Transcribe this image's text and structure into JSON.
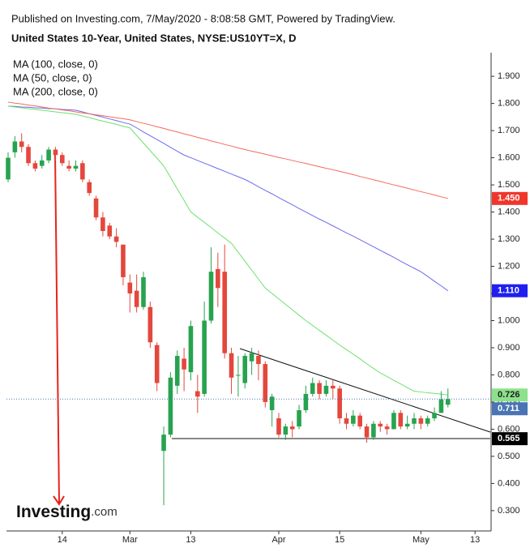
{
  "header": {
    "published": "Published on Investing.com, 7/May/2020 - 8:08:58 GMT, Powered by TradingView.",
    "title": "United States 10-Year, United States, NYSE:US10YT=X, D"
  },
  "logo": {
    "brand": "Investing",
    "suffix": ".com"
  },
  "chart_data": {
    "type": "candlestick",
    "categories": [
      null,
      null,
      null,
      null,
      null,
      null,
      null,
      null,
      "14",
      null,
      null,
      null,
      null,
      null,
      null,
      null,
      null,
      null,
      "Mar",
      null,
      null,
      null,
      null,
      null,
      null,
      null,
      null,
      "13",
      null,
      null,
      null,
      null,
      null,
      null,
      null,
      null,
      null,
      null,
      null,
      null,
      "Apr",
      null,
      null,
      null,
      null,
      null,
      null,
      null,
      null,
      "15",
      null,
      null,
      null,
      null,
      null,
      null,
      null,
      null,
      null,
      null,
      null,
      "May",
      null,
      null,
      null,
      null,
      null,
      null,
      null,
      "13"
    ],
    "candles": {
      "open": [
        1.52,
        1.62,
        1.66,
        1.64,
        1.58,
        1.57,
        1.59,
        1.63,
        1.61,
        1.57,
        1.56,
        1.58,
        1.51,
        1.45,
        1.38,
        1.35,
        1.31,
        1.28,
        1.14,
        1.11,
        1.05,
        1.05,
        0.91,
        0.52,
        0.58,
        0.76,
        0.86,
        0.81,
        0.74,
        0.73,
        1.0,
        1.19,
        1.18,
        0.88,
        0.8,
        0.77,
        0.85,
        0.87,
        0.84,
        0.67,
        0.64,
        0.58,
        0.61,
        0.61,
        0.67,
        0.73,
        0.77,
        0.73,
        0.76,
        0.75,
        0.64,
        0.62,
        0.65,
        0.61,
        0.57,
        0.62,
        0.61,
        0.6,
        0.66,
        0.61,
        0.62,
        0.64,
        0.62,
        0.64,
        0.66,
        0.69,
        null,
        null,
        null,
        null
      ],
      "high": [
        1.62,
        1.68,
        1.69,
        1.65,
        1.59,
        1.61,
        1.64,
        1.64,
        1.62,
        1.59,
        1.59,
        1.59,
        1.52,
        1.46,
        1.4,
        1.36,
        1.34,
        1.28,
        1.17,
        1.17,
        1.18,
        1.07,
        0.92,
        0.61,
        0.81,
        0.89,
        0.9,
        1.0,
        0.8,
        1.07,
        1.27,
        1.25,
        1.28,
        0.9,
        0.87,
        0.88,
        0.9,
        0.89,
        0.85,
        0.73,
        0.66,
        0.62,
        0.63,
        0.69,
        0.76,
        0.79,
        0.78,
        0.78,
        0.78,
        0.76,
        0.66,
        0.67,
        0.66,
        0.62,
        0.63,
        0.63,
        0.62,
        0.67,
        0.67,
        0.65,
        0.66,
        0.65,
        0.65,
        0.68,
        0.74,
        0.75,
        null,
        null,
        null,
        null
      ],
      "low": [
        1.51,
        1.6,
        1.62,
        1.57,
        1.55,
        1.56,
        1.58,
        1.59,
        1.57,
        1.55,
        1.55,
        1.51,
        1.46,
        1.37,
        1.31,
        1.3,
        1.27,
        1.13,
        1.03,
        1.03,
        1.04,
        0.9,
        0.74,
        0.32,
        0.57,
        0.73,
        0.74,
        0.78,
        0.66,
        0.72,
        0.99,
        1.05,
        0.86,
        0.73,
        0.72,
        0.75,
        0.8,
        0.78,
        0.68,
        0.61,
        0.57,
        0.56,
        0.57,
        0.6,
        0.66,
        0.72,
        0.71,
        0.72,
        0.71,
        0.62,
        0.6,
        0.61,
        0.6,
        0.55,
        0.56,
        0.59,
        0.58,
        0.6,
        0.6,
        0.6,
        0.6,
        0.6,
        0.61,
        0.63,
        0.66,
        0.68,
        null,
        null,
        null,
        null
      ],
      "close": [
        1.6,
        1.66,
        1.64,
        1.58,
        1.56,
        1.59,
        1.63,
        1.61,
        1.58,
        1.56,
        1.57,
        1.52,
        1.47,
        1.38,
        1.33,
        1.31,
        1.29,
        1.16,
        1.1,
        1.05,
        1.16,
        0.92,
        0.77,
        0.58,
        0.79,
        0.87,
        0.82,
        0.98,
        0.72,
        1.0,
        1.18,
        1.12,
        0.88,
        0.79,
        0.8,
        0.87,
        0.88,
        0.84,
        0.7,
        0.72,
        0.58,
        0.61,
        0.6,
        0.67,
        0.73,
        0.77,
        0.73,
        0.76,
        0.75,
        0.64,
        0.62,
        0.65,
        0.61,
        0.57,
        0.62,
        0.61,
        0.6,
        0.66,
        0.61,
        0.62,
        0.64,
        0.62,
        0.64,
        0.66,
        0.71,
        0.711,
        null,
        null,
        null,
        null
      ]
    },
    "up_color": "#27a34f",
    "down_color": "#e4473c",
    "series": [
      {
        "name": "MA (100, close, 0)",
        "color": "#6b6bf0",
        "values": [
          1.79,
          1.789,
          1.787,
          1.786,
          1.784,
          1.783,
          1.781,
          1.78,
          1.778,
          1.777,
          1.775,
          1.769,
          1.762,
          1.756,
          1.75,
          1.743,
          1.737,
          1.73,
          1.724,
          1.71,
          1.695,
          1.681,
          1.667,
          1.653,
          1.638,
          1.624,
          1.61,
          1.6,
          1.59,
          1.58,
          1.57,
          1.56,
          1.55,
          1.54,
          1.53,
          1.52,
          1.507,
          1.493,
          1.48,
          1.467,
          1.453,
          1.44,
          1.427,
          1.413,
          1.4,
          1.387,
          1.374,
          1.362,
          1.349,
          1.336,
          1.323,
          1.311,
          1.298,
          1.285,
          1.272,
          1.259,
          1.246,
          1.233,
          1.219,
          1.206,
          1.193,
          1.18,
          1.163,
          1.145,
          1.128,
          1.11,
          null,
          null,
          null,
          null
        ]
      },
      {
        "name": "MA (50, close, 0)",
        "color": "#6fe06f",
        "values": [
          1.79,
          1.787,
          1.784,
          1.781,
          1.778,
          1.775,
          1.772,
          1.769,
          1.766,
          1.763,
          1.76,
          1.754,
          1.748,
          1.741,
          1.735,
          1.729,
          1.723,
          1.716,
          1.71,
          1.682,
          1.654,
          1.626,
          1.598,
          1.57,
          1.528,
          1.485,
          1.443,
          1.4,
          1.381,
          1.362,
          1.343,
          1.323,
          1.304,
          1.285,
          1.252,
          1.219,
          1.186,
          1.153,
          1.12,
          1.1,
          1.08,
          1.06,
          1.04,
          1.02,
          1.0,
          0.982,
          0.964,
          0.946,
          0.928,
          0.91,
          0.893,
          0.876,
          0.859,
          0.841,
          0.824,
          0.807,
          0.794,
          0.78,
          0.767,
          0.753,
          0.74,
          0.737,
          0.734,
          0.732,
          0.729,
          0.726,
          null,
          null,
          null,
          null
        ]
      },
      {
        "name": "MA (200, close, 0)",
        "color": "#f26b5b",
        "values": [
          1.805,
          1.801,
          1.798,
          1.794,
          1.791,
          1.787,
          1.783,
          1.78,
          1.776,
          1.773,
          1.769,
          1.765,
          1.762,
          1.758,
          1.755,
          1.751,
          1.747,
          1.744,
          1.74,
          1.733,
          1.727,
          1.721,
          1.714,
          1.708,
          1.701,
          1.695,
          1.688,
          1.682,
          1.675,
          1.669,
          1.662,
          1.656,
          1.649,
          1.643,
          1.636,
          1.63,
          1.624,
          1.619,
          1.613,
          1.607,
          1.601,
          1.596,
          1.59,
          1.584,
          1.579,
          1.573,
          1.567,
          1.561,
          1.556,
          1.55,
          1.544,
          1.538,
          1.531,
          1.525,
          1.519,
          1.513,
          1.506,
          1.5,
          1.494,
          1.488,
          1.481,
          1.475,
          1.469,
          1.463,
          1.456,
          1.45,
          null,
          null,
          null,
          null
        ]
      }
    ],
    "ylim": [
      0.225,
      1.987
    ],
    "yticks": [
      {
        "value": 0.3,
        "label": "0.300"
      },
      {
        "value": 0.4,
        "label": "0.400"
      },
      {
        "value": 0.5,
        "label": "0.500"
      },
      {
        "value": 0.6,
        "label": "0.600"
      },
      {
        "value": 0.7,
        "label": "0.700"
      },
      {
        "value": 0.8,
        "label": "0.800"
      },
      {
        "value": 0.9,
        "label": "0.900"
      },
      {
        "value": 1.0,
        "label": "1.000"
      },
      {
        "value": 1.1,
        "label": "1.100"
      },
      {
        "value": 1.2,
        "label": "1.200"
      },
      {
        "value": 1.3,
        "label": "1.300"
      },
      {
        "value": 1.4,
        "label": "1.400"
      },
      {
        "value": 1.5,
        "label": "1.500"
      },
      {
        "value": 1.6,
        "label": "1.600"
      },
      {
        "value": 1.7,
        "label": "1.700"
      },
      {
        "value": 1.8,
        "label": "1.800"
      },
      {
        "value": 1.9,
        "label": "1.900"
      }
    ],
    "price_labels": [
      {
        "value": 1.45,
        "label": "1.450",
        "color": "#f0362b"
      },
      {
        "value": 1.11,
        "label": "1.110",
        "color": "#1f1ff0"
      },
      {
        "value": 0.726,
        "label": "0.726",
        "color": "#8be28b"
      },
      {
        "value": 0.711,
        "label": "0.711",
        "color": "#4a74b4"
      },
      {
        "value": 0.565,
        "label": "0.565",
        "color": "#000000"
      }
    ],
    "last_price_index": 3
  }
}
